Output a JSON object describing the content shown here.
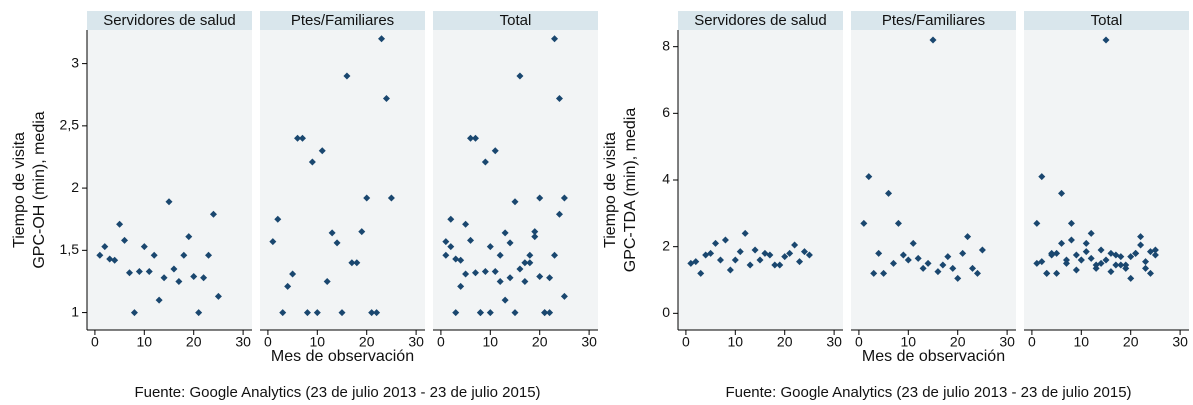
{
  "chart_data": [
    {
      "type": "scatter",
      "y_label": [
        "Tiempo de visita",
        "GPC-OH (min), media"
      ],
      "x_label": "Mes de observación",
      "source": "Fuente: Google Analytics (23 de julio 2013 - 23 de julio 2015)",
      "color": "#1a476f",
      "xlim": [
        -1.6,
        31.8
      ],
      "xticks": [
        0,
        10,
        20,
        30
      ],
      "ylim": [
        0.86,
        3.27
      ],
      "yticks": [
        1,
        {
          "value": 1.5,
          "label": "1,5"
        },
        2,
        {
          "value": 2.5,
          "label": "2,5"
        },
        3
      ],
      "panels": [
        {
          "title": "Servidores de salud",
          "x": [
            1,
            2,
            3,
            4,
            5,
            6,
            7,
            8,
            9,
            10,
            11,
            12,
            13,
            14,
            15,
            16,
            17,
            18,
            19,
            20,
            21,
            22,
            23,
            24,
            25
          ],
          "y": [
            1.46,
            1.53,
            1.43,
            1.42,
            1.71,
            1.58,
            1.32,
            1.0,
            1.33,
            1.53,
            1.33,
            1.46,
            1.1,
            1.28,
            1.89,
            1.35,
            1.25,
            1.46,
            1.61,
            1.29,
            1.0,
            1.28,
            1.46,
            1.79,
            1.13
          ]
        },
        {
          "title": "Ptes/Familiares",
          "x": [
            1,
            2,
            3,
            4,
            5,
            6,
            7,
            8,
            9,
            10,
            11,
            12,
            13,
            14,
            15,
            16,
            17,
            18,
            19,
            20,
            21,
            22,
            23,
            24,
            25
          ],
          "y": [
            1.57,
            1.75,
            1.0,
            1.21,
            1.31,
            2.4,
            2.4,
            1.0,
            2.21,
            1.0,
            2.3,
            1.25,
            1.64,
            1.56,
            1.0,
            2.9,
            1.4,
            1.4,
            1.65,
            1.92,
            1.0,
            1.0,
            3.2,
            2.72,
            1.92
          ]
        },
        {
          "title": "Total",
          "x": [
            1,
            2,
            3,
            4,
            5,
            6,
            7,
            8,
            9,
            10,
            11,
            12,
            13,
            14,
            15,
            16,
            17,
            18,
            19,
            20,
            21,
            22,
            23,
            24,
            25,
            1,
            2,
            3,
            4,
            5,
            6,
            7,
            8,
            9,
            10,
            11,
            12,
            13,
            14,
            15,
            16,
            17,
            18,
            19,
            20,
            21,
            22,
            23,
            24,
            25
          ],
          "y": [
            1.46,
            1.53,
            1.43,
            1.42,
            1.71,
            1.58,
            1.32,
            1.0,
            1.33,
            1.53,
            1.33,
            1.46,
            1.1,
            1.28,
            1.89,
            1.35,
            1.25,
            1.46,
            1.61,
            1.29,
            1.0,
            1.28,
            1.46,
            1.79,
            1.13,
            1.57,
            1.75,
            1.0,
            1.21,
            1.31,
            2.4,
            2.4,
            1.0,
            2.21,
            1.0,
            2.3,
            1.25,
            1.64,
            1.56,
            1.0,
            2.9,
            1.4,
            1.4,
            1.65,
            1.92,
            1.0,
            1.0,
            3.2,
            2.72,
            1.92
          ]
        }
      ]
    },
    {
      "type": "scatter",
      "y_label": [
        "Tiempo de visita",
        "GPC-TDA (min), media"
      ],
      "x_label": "Mes de observación",
      "source": "Fuente: Google Analytics (23 de julio 2013 - 23 de julio 2015)",
      "color": "#1a476f",
      "xlim": [
        -1.6,
        31.8
      ],
      "xticks": [
        0,
        10,
        20,
        30
      ],
      "ylim": [
        -0.5,
        8.5
      ],
      "yticks": [
        0,
        2,
        4,
        6,
        8
      ],
      "panels": [
        {
          "title": "Servidores de salud",
          "x": [
            1,
            2,
            3,
            4,
            5,
            6,
            7,
            8,
            9,
            10,
            11,
            12,
            13,
            14,
            15,
            16,
            17,
            18,
            19,
            20,
            21,
            22,
            23,
            24,
            25
          ],
          "y": [
            1.5,
            1.55,
            1.2,
            1.75,
            1.8,
            2.1,
            1.6,
            2.2,
            1.3,
            1.6,
            1.85,
            2.4,
            1.45,
            1.9,
            1.6,
            1.8,
            1.75,
            1.45,
            1.45,
            1.7,
            1.8,
            2.05,
            1.55,
            1.85,
            1.75
          ]
        },
        {
          "title": "Ptes/Familiares",
          "x": [
            1,
            2,
            3,
            4,
            5,
            6,
            7,
            8,
            9,
            10,
            11,
            12,
            13,
            14,
            15,
            16,
            17,
            18,
            19,
            20,
            21,
            22,
            23,
            24,
            25
          ],
          "y": [
            2.7,
            4.1,
            1.2,
            1.8,
            1.2,
            3.6,
            1.5,
            2.7,
            1.75,
            1.6,
            2.1,
            1.65,
            1.35,
            1.5,
            8.2,
            1.25,
            1.45,
            1.7,
            1.35,
            1.05,
            1.8,
            2.3,
            1.35,
            1.2,
            1.9
          ]
        },
        {
          "title": "Total",
          "x": [
            1,
            2,
            3,
            4,
            5,
            6,
            7,
            8,
            9,
            10,
            11,
            12,
            13,
            14,
            15,
            16,
            17,
            18,
            19,
            20,
            21,
            22,
            23,
            24,
            25,
            1,
            2,
            3,
            4,
            5,
            6,
            7,
            8,
            9,
            10,
            11,
            12,
            13,
            14,
            15,
            16,
            17,
            18,
            19,
            20,
            21,
            22,
            23,
            24,
            25
          ],
          "y": [
            1.5,
            1.55,
            1.2,
            1.75,
            1.8,
            2.1,
            1.6,
            2.2,
            1.3,
            1.6,
            1.85,
            2.4,
            1.45,
            1.9,
            1.6,
            1.8,
            1.75,
            1.45,
            1.45,
            1.7,
            1.8,
            2.05,
            1.55,
            1.85,
            1.75,
            2.7,
            4.1,
            1.2,
            1.8,
            1.2,
            3.6,
            1.5,
            2.7,
            1.75,
            1.6,
            2.1,
            1.65,
            1.35,
            1.5,
            8.2,
            1.25,
            1.45,
            1.7,
            1.35,
            1.05,
            1.8,
            2.3,
            1.35,
            1.2,
            1.9
          ]
        }
      ]
    }
  ]
}
